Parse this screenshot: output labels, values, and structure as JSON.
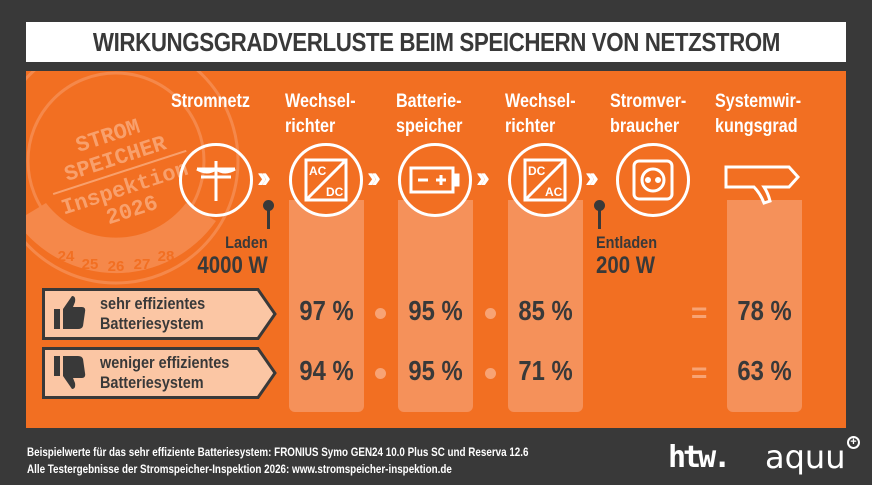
{
  "title": "WIRKUNGSGRADVERLUSTE BEIM SPEICHERN VON NETZSTROM",
  "watermark": {
    "lines": [
      "STROM",
      "SPEICHER",
      "Inspektion",
      "2026"
    ],
    "years": [
      "24",
      "25",
      "26",
      "27",
      "28"
    ]
  },
  "columns": [
    {
      "label1": "Stromnetz",
      "label2": "",
      "icon": "power-pole-icon"
    },
    {
      "label1": "Wechsel-",
      "label2": "richter",
      "icon": "ac-dc-converter-icon",
      "icon_top": "AC",
      "icon_bottom": "DC"
    },
    {
      "label1": "Batterie-",
      "label2": "speicher",
      "icon": "battery-icon"
    },
    {
      "label1": "Wechsel-",
      "label2": "richter",
      "icon": "dc-ac-converter-icon",
      "icon_top": "DC",
      "icon_bottom": "AC"
    },
    {
      "label1": "Stromver-",
      "label2": "braucher",
      "icon": "power-socket-icon"
    },
    {
      "label1": "Systemwir-",
      "label2": "kungsgrad",
      "icon": "pointer-sign-icon"
    }
  ],
  "charge": {
    "label": "Laden",
    "power": "4000 W"
  },
  "discharge": {
    "label": "Entladen",
    "power": "200 W"
  },
  "rows": [
    {
      "label1": "sehr effizientes",
      "label2": "Batteriesystem",
      "icon": "thumbs-up-icon",
      "values": [
        "97 %",
        "95 %",
        "85 %"
      ],
      "result": "78 %"
    },
    {
      "label1": "weniger effizientes",
      "label2": "Batteriesystem",
      "icon": "thumbs-down-icon",
      "values": [
        "94 %",
        "95 %",
        "71 %"
      ],
      "result": "63 %"
    }
  ],
  "equals": "=",
  "footer": {
    "line1": "Beispielwerte für das sehr effiziente Batteriesystem: FRONIUS Symo GEN24 10.0 Plus SC und Reserva 12.6",
    "line2": "Alle Testergebnisse der Stromspeicher-Inspektion 2026: www.stromspeicher-inspektion.de"
  },
  "logos": {
    "htw": "htw.",
    "aquu": "aquu"
  },
  "colors": {
    "background": "#393939",
    "orange": "#f26f22",
    "bar": "#f5915a",
    "label_fill": "#fbc6a4",
    "text_dark": "#393939"
  }
}
